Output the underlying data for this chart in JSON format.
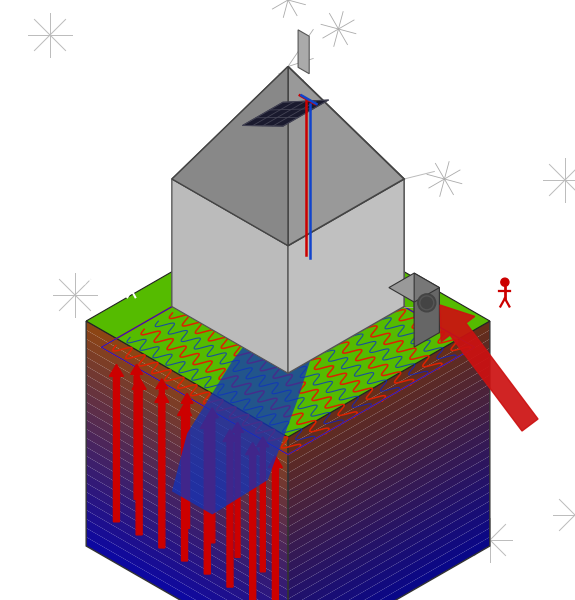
{
  "bg_color": "#ffffff",
  "grass_green": "#66cc00",
  "earth_brown": "#8B4513",
  "deep_blue": "#0000bb",
  "wall_gray": "#cccccc",
  "roof_gray": "#888888",
  "dark_roof": "#555555",
  "solar_dark": "#222233",
  "red_pipe": "#cc0000",
  "blue_pipe": "#1144cc",
  "red_arrow": "#cc0000",
  "coil_red": "#dd2200",
  "coil_blue": "#0022dd",
  "floor_red": "#ff3333",
  "floor_blue": "#3333ff",
  "guide_gray": "#aaaaaa",
  "white": "#ffffff",
  "hvac_gray": "#777777",
  "blue_flow": "#1133bb"
}
